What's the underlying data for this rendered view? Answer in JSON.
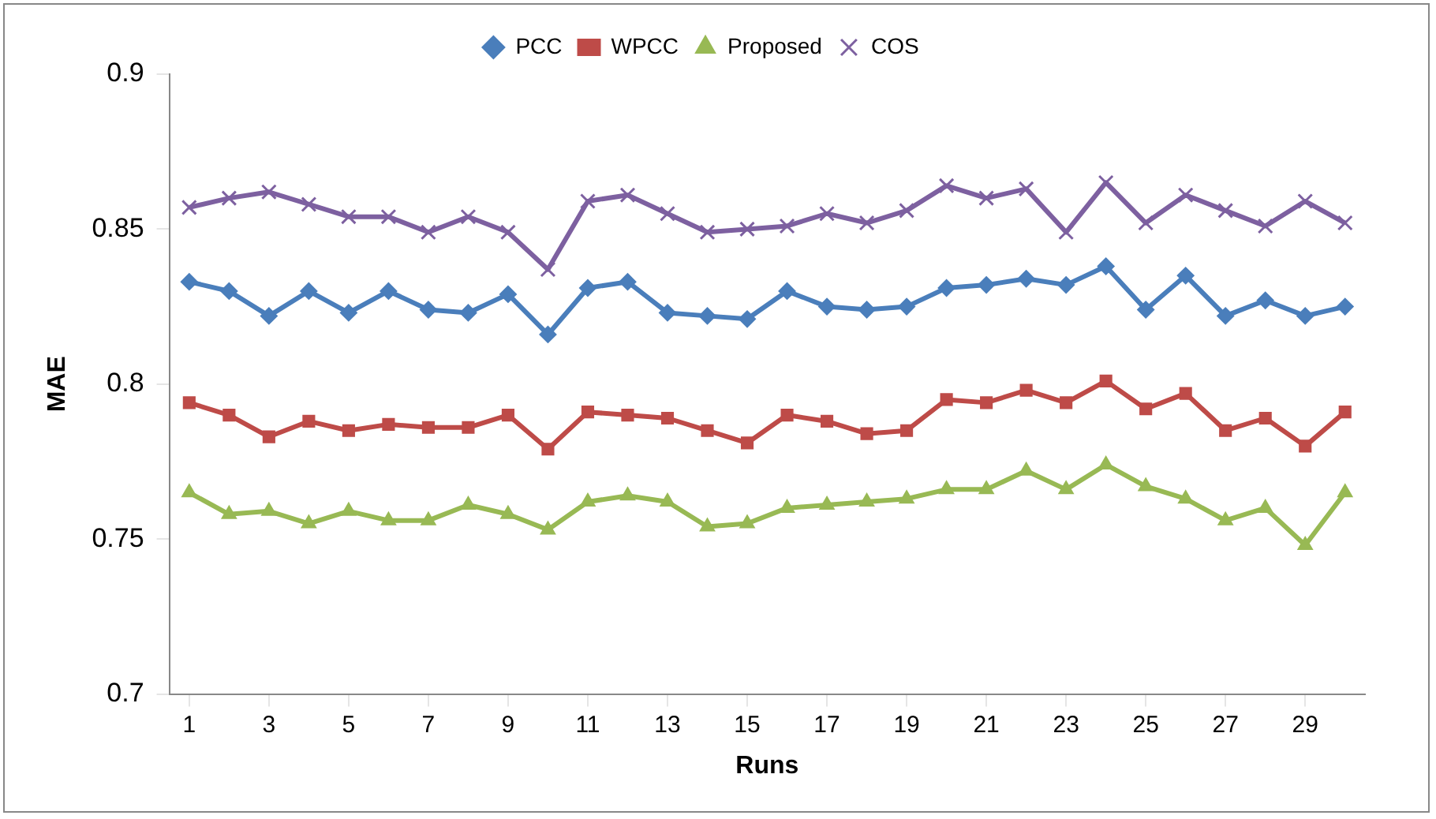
{
  "chart_data": {
    "type": "line",
    "xlabel": "Runs",
    "ylabel": "MAE",
    "x": [
      1,
      2,
      3,
      4,
      5,
      6,
      7,
      8,
      9,
      10,
      11,
      12,
      13,
      14,
      15,
      16,
      17,
      18,
      19,
      20,
      21,
      22,
      23,
      24,
      25,
      26,
      27,
      28,
      29,
      30
    ],
    "xlim": [
      0.5,
      30.5
    ],
    "xticks": [
      1,
      3,
      5,
      7,
      9,
      11,
      13,
      15,
      17,
      19,
      21,
      23,
      25,
      27,
      29
    ],
    "ylim": [
      0.7,
      0.9
    ],
    "yticks": [
      0.7,
      0.75,
      0.8,
      0.85,
      0.9
    ],
    "grid": false,
    "legend": "top",
    "line_style": "solid",
    "series": [
      {
        "name": "PCC",
        "color": "#4a7ebb",
        "marker": "diamond",
        "values": [
          0.833,
          0.83,
          0.822,
          0.83,
          0.823,
          0.83,
          0.824,
          0.823,
          0.829,
          0.816,
          0.831,
          0.833,
          0.823,
          0.822,
          0.821,
          0.83,
          0.825,
          0.824,
          0.825,
          0.831,
          0.832,
          0.834,
          0.832,
          0.838,
          0.824,
          0.835,
          0.822,
          0.827,
          0.822,
          0.825
        ]
      },
      {
        "name": "WPCC",
        "color": "#be4b48",
        "marker": "square",
        "values": [
          0.794,
          0.79,
          0.783,
          0.788,
          0.785,
          0.787,
          0.786,
          0.786,
          0.79,
          0.779,
          0.791,
          0.79,
          0.789,
          0.785,
          0.781,
          0.79,
          0.788,
          0.784,
          0.785,
          0.795,
          0.794,
          0.798,
          0.794,
          0.801,
          0.792,
          0.797,
          0.785,
          0.789,
          0.78,
          0.791
        ]
      },
      {
        "name": "Proposed",
        "color": "#98b954",
        "marker": "triangle",
        "values": [
          0.765,
          0.758,
          0.759,
          0.755,
          0.759,
          0.756,
          0.756,
          0.761,
          0.758,
          0.753,
          0.762,
          0.764,
          0.762,
          0.754,
          0.755,
          0.76,
          0.761,
          0.762,
          0.763,
          0.766,
          0.766,
          0.772,
          0.766,
          0.774,
          0.767,
          0.763,
          0.756,
          0.76,
          0.748,
          0.765
        ]
      },
      {
        "name": "COS",
        "color": "#7d60a0",
        "marker": "cross",
        "values": [
          0.857,
          0.86,
          0.862,
          0.858,
          0.854,
          0.854,
          0.849,
          0.854,
          0.849,
          0.837,
          0.859,
          0.861,
          0.855,
          0.849,
          0.85,
          0.851,
          0.855,
          0.852,
          0.856,
          0.864,
          0.86,
          0.863,
          0.849,
          0.865,
          0.852,
          0.861,
          0.856,
          0.851,
          0.859,
          0.852
        ]
      }
    ]
  }
}
